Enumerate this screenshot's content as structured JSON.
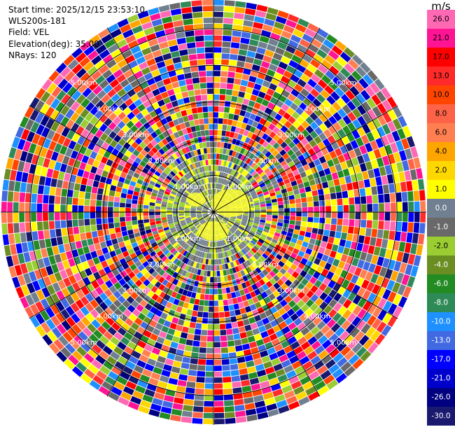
{
  "info": {
    "start_time": "Start time: 2025/12/15 23:53:10",
    "instrument": "WLS200s-181",
    "field": "Field: VEL",
    "elevation": "Elevation(deg): 35.00",
    "nrays": "NRays: 120"
  },
  "range_rings": [
    {
      "label": "1.00km",
      "km": 1
    },
    {
      "label": "2.00km",
      "km": 2
    },
    {
      "label": "3.00km",
      "km": 3
    },
    {
      "label": "4.00km",
      "km": 4
    },
    {
      "label": "5.00km",
      "km": 5
    }
  ],
  "max_range_km": 5.8,
  "colorbar": {
    "unit": "m/s",
    "labels": [
      "26.0",
      "21.0",
      "17.0",
      "13.0",
      "10.0",
      "8.0",
      "6.0",
      "4.0",
      "2.0",
      "1.0",
      "0.0",
      "-1.0",
      "-2.0",
      "-4.0",
      "-6.0",
      "-8.0",
      "-10.0",
      "-13.0",
      "-17.0",
      "-21.0",
      "-26.0",
      "-30.0"
    ],
    "colors": [
      "#ff69b4",
      "#ff1493",
      "#ff0000",
      "#ff2a2a",
      "#ff4500",
      "#ff6347",
      "#ff7f50",
      "#ffa500",
      "#ffd700",
      "#ffff00",
      "#708090",
      "#696969",
      "#9acd32",
      "#6b8e23",
      "#228b22",
      "#2e8b57",
      "#1e90ff",
      "#4169e1",
      "#0000ff",
      "#0000cd",
      "#000080",
      "#191970"
    ]
  }
}
